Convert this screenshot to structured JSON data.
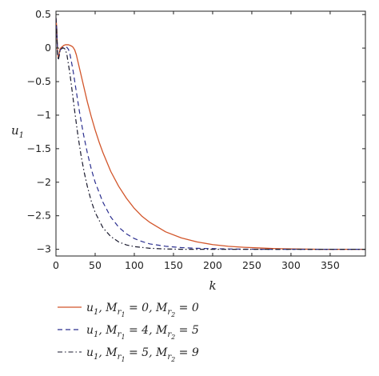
{
  "chart_data": {
    "type": "line",
    "xlabel": "k",
    "ylabel": "u1",
    "xlim": [
      0,
      395
    ],
    "ylim": [
      -3.1,
      0.55
    ],
    "xticks": [
      0,
      50,
      100,
      150,
      200,
      250,
      300,
      350
    ],
    "yticks": [
      0.5,
      0,
      -0.5,
      -1,
      -1.5,
      -2,
      -2.5,
      -3
    ],
    "ytick_labels": [
      "0.5",
      "0",
      "−0.5",
      "−1",
      "−1.5",
      "−2",
      "−2.5",
      "−3"
    ],
    "grid": false,
    "legend_position": "bottom-left",
    "series": [
      {
        "name": "u1, Mr1 = 0, Mr2 = 0",
        "color": "#d2552a",
        "style": "solid",
        "x": [
          0,
          1,
          2,
          3,
          4,
          5,
          6,
          8,
          10,
          12,
          14,
          16,
          18,
          20,
          22,
          24,
          26,
          28,
          30,
          35,
          40,
          45,
          50,
          55,
          60,
          70,
          80,
          90,
          100,
          110,
          120,
          140,
          160,
          180,
          200,
          220,
          240,
          260,
          280,
          300,
          320,
          340,
          360,
          380,
          395
        ],
        "y": [
          0.45,
          0.3,
          -0.05,
          -0.15,
          -0.1,
          -0.02,
          0.0,
          0.02,
          0.04,
          0.05,
          0.05,
          0.05,
          0.04,
          0.03,
          0.01,
          -0.03,
          -0.1,
          -0.2,
          -0.3,
          -0.55,
          -0.8,
          -1.02,
          -1.22,
          -1.4,
          -1.56,
          -1.84,
          -2.06,
          -2.24,
          -2.39,
          -2.51,
          -2.6,
          -2.74,
          -2.83,
          -2.89,
          -2.93,
          -2.955,
          -2.97,
          -2.98,
          -2.99,
          -2.995,
          -2.998,
          -3.0,
          -3.0,
          -3.0,
          -3.0
        ]
      },
      {
        "name": "u1, Mr1 = 4, Mr2 = 5",
        "color": "#2b2f8f",
        "style": "dashed",
        "x": [
          0,
          1,
          2,
          3,
          4,
          5,
          6,
          8,
          10,
          12,
          14,
          16,
          18,
          20,
          22,
          24,
          26,
          30,
          35,
          40,
          45,
          50,
          60,
          70,
          80,
          90,
          100,
          110,
          120,
          140,
          160,
          180,
          200,
          220,
          240,
          260,
          280,
          300,
          320,
          340,
          360,
          380,
          395
        ],
        "y": [
          0.45,
          0.28,
          -0.05,
          -0.15,
          -0.12,
          -0.05,
          -0.02,
          0.0,
          0.02,
          0.02,
          0.01,
          -0.02,
          -0.1,
          -0.22,
          -0.35,
          -0.5,
          -0.65,
          -0.95,
          -1.28,
          -1.56,
          -1.8,
          -2.0,
          -2.3,
          -2.52,
          -2.67,
          -2.77,
          -2.84,
          -2.885,
          -2.92,
          -2.955,
          -2.975,
          -2.985,
          -2.99,
          -2.995,
          -2.998,
          -3.0,
          -3.0,
          -3.0,
          -3.0,
          -3.0,
          -3.0,
          -3.0,
          -3.0
        ]
      },
      {
        "name": "u1, Mr1 = 5, Mr2 = 9",
        "color": "#1a1a2e",
        "style": "dashdot",
        "x": [
          0,
          1,
          2,
          3,
          4,
          5,
          6,
          8,
          10,
          12,
          14,
          16,
          18,
          20,
          24,
          28,
          32,
          36,
          40,
          45,
          50,
          60,
          70,
          80,
          90,
          100,
          120,
          140,
          160,
          180,
          200,
          220,
          240,
          260,
          280,
          300,
          340,
          395
        ],
        "y": [
          0.45,
          0.25,
          -0.08,
          -0.18,
          -0.12,
          -0.05,
          -0.02,
          0.0,
          0.0,
          -0.02,
          -0.1,
          -0.25,
          -0.4,
          -0.58,
          -0.95,
          -1.3,
          -1.6,
          -1.85,
          -2.06,
          -2.28,
          -2.45,
          -2.68,
          -2.81,
          -2.89,
          -2.935,
          -2.96,
          -2.985,
          -2.995,
          -3.0,
          -3.0,
          -3.0,
          -3.0,
          -3.0,
          -3.0,
          -3.0,
          -3.0,
          -3.0,
          -3.0
        ]
      }
    ]
  }
}
